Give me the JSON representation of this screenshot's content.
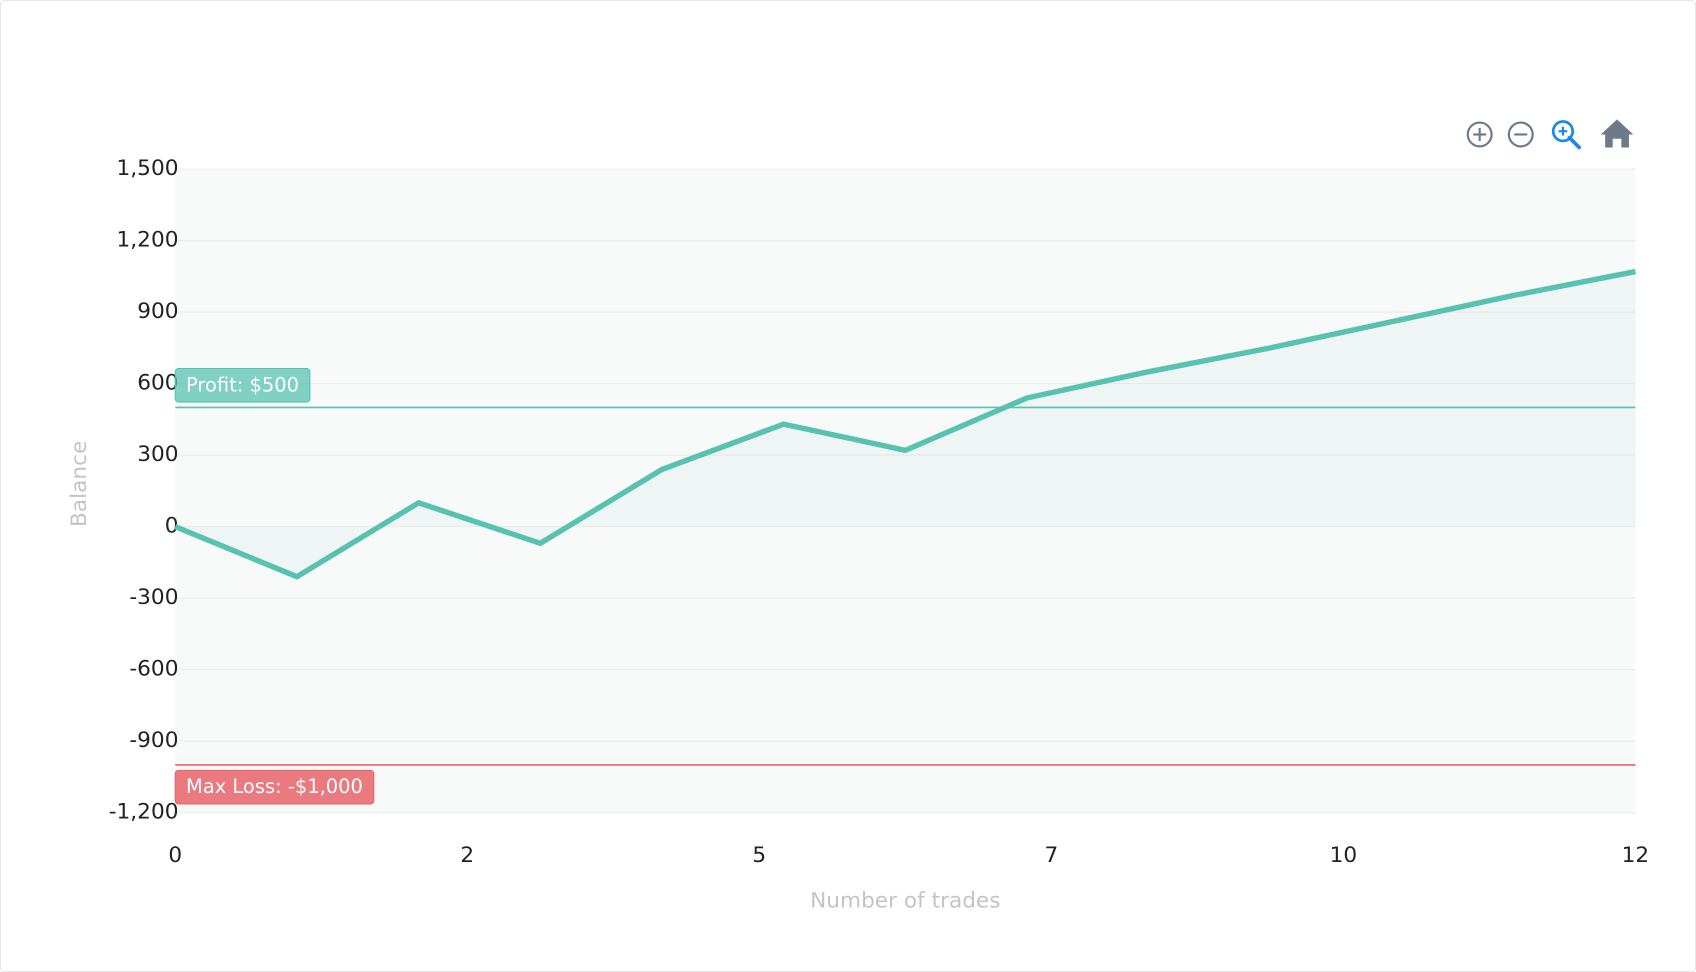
{
  "chart_data": {
    "type": "line",
    "x_label": "Number of trades",
    "y_label": "Balance",
    "x": [
      0,
      1,
      2,
      3,
      4,
      5,
      6,
      7,
      8,
      9,
      10,
      11,
      12
    ],
    "values": [
      0,
      -210,
      100,
      -70,
      240,
      430,
      320,
      540,
      650,
      750,
      860,
      970,
      1070
    ],
    "color": "#58c2b0",
    "xlim": [
      0,
      12
    ],
    "xticks": [
      {
        "value": 0,
        "label": "0"
      },
      {
        "value": 2.4,
        "label": "2"
      },
      {
        "value": 4.8,
        "label": "5"
      },
      {
        "value": 7.2,
        "label": "7"
      },
      {
        "value": 9.6,
        "label": "10"
      },
      {
        "value": 12,
        "label": "12"
      }
    ],
    "ylim": [
      -1200,
      1500
    ],
    "yticks": [
      {
        "value": 1500,
        "label": "1,500"
      },
      {
        "value": 1200,
        "label": "1,200"
      },
      {
        "value": 900,
        "label": "900"
      },
      {
        "value": 600,
        "label": "600"
      },
      {
        "value": 300,
        "label": "300"
      },
      {
        "value": 0,
        "label": "0"
      },
      {
        "value": -300,
        "label": "-300"
      },
      {
        "value": -600,
        "label": "-600"
      },
      {
        "value": -900,
        "label": "-900"
      },
      {
        "value": -1200,
        "label": "-1,200"
      }
    ],
    "grid": true,
    "annotations": [
      {
        "y": 500,
        "label": "Profit: $500",
        "color": "#58c2b0"
      },
      {
        "y": -1000,
        "label": "Max Loss: -$1,000",
        "color": "#e8636b"
      }
    ]
  }
}
